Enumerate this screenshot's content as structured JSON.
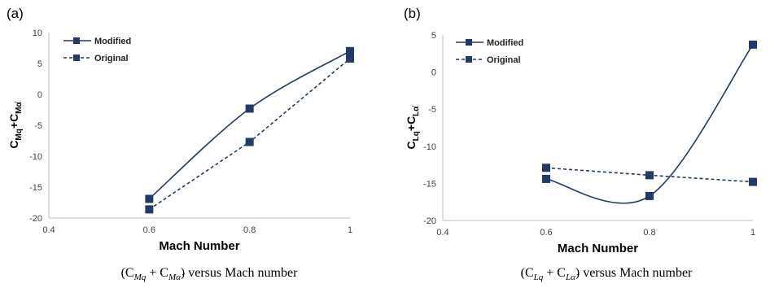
{
  "chart_data": [
    {
      "type": "line",
      "panel_label": "(a)",
      "xlabel": "Mach Number",
      "ylabel_parts": [
        "C",
        "Mq",
        "+C",
        "Mα̇"
      ],
      "xlim": [
        0.4,
        1.0
      ],
      "ylim": [
        -20,
        10
      ],
      "xticks": [
        0.4,
        0.6,
        0.8,
        1.0
      ],
      "xtick_labels": [
        "0.4",
        "0.6",
        "0.8",
        "1"
      ],
      "yticks": [
        10,
        5,
        0,
        -5,
        -10,
        -15,
        -20
      ],
      "ytick_labels": [
        "10",
        "5",
        "0",
        "-5",
        "-10",
        "-15",
        "-20"
      ],
      "grid": false,
      "legend_position": "top-left",
      "x": [
        0.6,
        0.8,
        1.0
      ],
      "series": [
        {
          "name": "Modified",
          "values": [
            -16.9,
            -2.3,
            7.0
          ],
          "style": "solid",
          "smooth": true
        },
        {
          "name": "Original",
          "values": [
            -18.6,
            -7.7,
            5.8
          ],
          "style": "dashed",
          "smooth": false
        }
      ],
      "caption_parts": [
        "(C",
        "Mq",
        " + C",
        "Mα̇",
        ") versus Mach number"
      ],
      "color": "#1f3a6b"
    },
    {
      "type": "line",
      "panel_label": "(b)",
      "xlabel": "Mach Number",
      "ylabel_parts": [
        "C",
        "Lq",
        "+C",
        "Lα̇"
      ],
      "xlim": [
        0.4,
        1.0
      ],
      "ylim": [
        -20,
        5
      ],
      "xticks": [
        0.4,
        0.6,
        0.8,
        1.0
      ],
      "xtick_labels": [
        "0.4",
        "0.6",
        "0.8",
        "1"
      ],
      "yticks": [
        5,
        0,
        -5,
        -10,
        -15,
        -20
      ],
      "ytick_labels": [
        "5",
        "0",
        "-5",
        "-10",
        "-15",
        "-20"
      ],
      "grid": false,
      "legend_position": "top-left",
      "x": [
        0.6,
        0.8,
        1.0
      ],
      "series": [
        {
          "name": "Modified",
          "values": [
            -14.4,
            -16.7,
            3.7
          ],
          "style": "solid",
          "smooth": true
        },
        {
          "name": "Original",
          "values": [
            -12.9,
            -13.9,
            -14.8
          ],
          "style": "dashed",
          "smooth": false
        }
      ],
      "caption_parts": [
        "(C",
        "Lq",
        " + C",
        "Lα̇",
        ") versus Mach number"
      ],
      "color": "#1f3a6b"
    }
  ]
}
